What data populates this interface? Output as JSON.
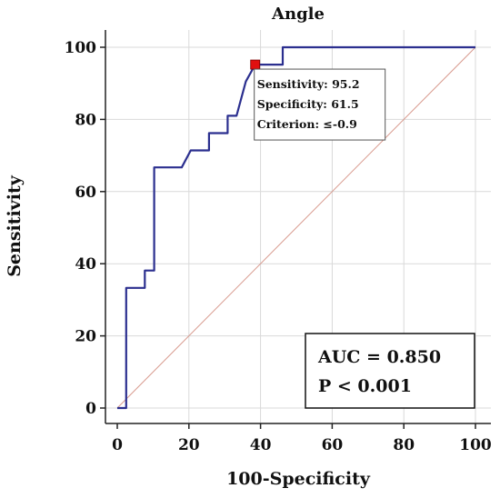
{
  "chart_data": {
    "type": "line",
    "title": "Angle",
    "xlabel": "100-Specificity",
    "ylabel": "Sensitivity",
    "xlim": [
      0,
      100
    ],
    "ylim": [
      0,
      100
    ],
    "xticks": [
      0,
      20,
      40,
      60,
      80,
      100
    ],
    "yticks": [
      0,
      20,
      40,
      60,
      80,
      100
    ],
    "grid": true,
    "colors": {
      "roc": "#2b2f8f",
      "reference": "#d89a8e",
      "marker": "#e01010",
      "grid": "#d9d9d9"
    },
    "series": [
      {
        "kind": "roc",
        "x": [
          0,
          2.5,
          2.5,
          7.7,
          7.7,
          10.3,
          10.3,
          18.0,
          20.5,
          25.6,
          25.6,
          30.8,
          30.8,
          33.3,
          35.9,
          38.5,
          38.5,
          46.2,
          46.2,
          100
        ],
        "y": [
          0,
          0,
          33.3,
          33.3,
          38.1,
          38.1,
          66.7,
          66.7,
          71.4,
          71.4,
          76.2,
          76.2,
          81.0,
          81.0,
          90.5,
          95.2,
          95.2,
          95.2,
          100,
          100
        ]
      },
      {
        "kind": "reference",
        "x": [
          0,
          100
        ],
        "y": [
          0,
          100
        ]
      }
    ],
    "criterion_point": {
      "x": 38.5,
      "y": 95.2,
      "lines": [
        "Sensitivity: 95.2",
        "Specificity: 61.5",
        "Criterion: ≤-0.9"
      ]
    },
    "auc_box": {
      "lines": [
        "AUC = 0.850",
        "P < 0.001"
      ]
    }
  }
}
